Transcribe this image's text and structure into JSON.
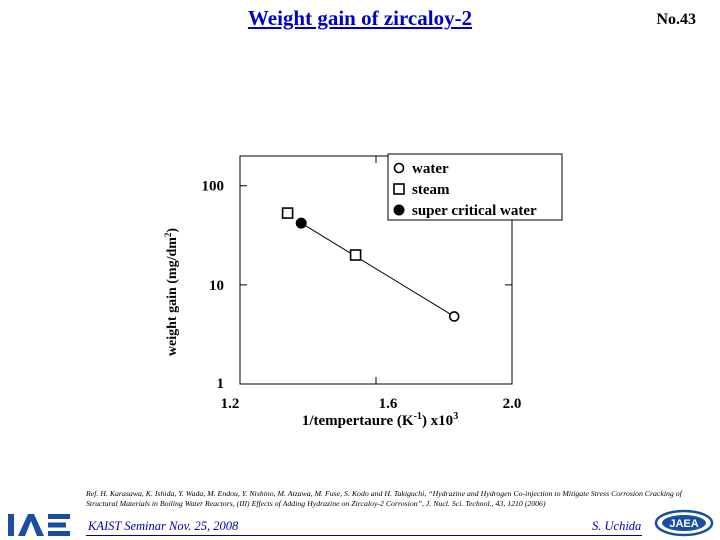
{
  "slide": {
    "title": "Weight gain of zircaloy-2",
    "number": "No.43"
  },
  "reference": "Ref. H. Karasawa, K. Ishida, Y. Wada, M. Endou, Y. Nishino, M. Aizawa, M. Fuse, S. Kodo and H. Takiguchi, “Hydrazine and Hydrogen Co-injection to Mitigate Stress Corrosion Cracking of Structural Materials in Boiling Water Reactors, (III) Effects of Adding Hydrazine on Zircaloy-2 Corrosion”, J. Nucl. Sci. Technol., 43, 1210 (2006)",
  "footer": {
    "left": "KAIST Seminar  Nov. 25, 2008",
    "right": "S. Uchida"
  },
  "logos": {
    "left_text": "IAE",
    "right_text": "JAEA"
  },
  "colors": {
    "title": "#0000cc",
    "footer": "#0000aa",
    "logo": "#1a4fa0"
  },
  "chart_data": {
    "type": "scatter",
    "title": "",
    "xlabel": "1/tempertaure  (K-1)  x103",
    "xlabel_parts": {
      "main": "1/tempertaure  (K",
      "sup1": "-1",
      "mid": ")  x10",
      "sup2": "3"
    },
    "ylabel": "weight gain (mg/dm2)",
    "ylabel_parts": {
      "main": "weight gain (mg/dm",
      "sup": "2",
      "end": ")"
    },
    "xlim": [
      1.2,
      2.0
    ],
    "ylim": [
      1,
      100
    ],
    "yscale": "log",
    "xticks": [
      "1.2",
      "1.6",
      "2.0"
    ],
    "yticks": [
      "1",
      "10",
      "100"
    ],
    "grid": false,
    "legend_position": "top-right",
    "series": [
      {
        "name": "water",
        "marker": "open-circle",
        "points": [
          {
            "x": 1.83,
            "y": 4.8
          }
        ]
      },
      {
        "name": "steam",
        "marker": "open-square",
        "points": [
          {
            "x": 1.34,
            "y": 53
          },
          {
            "x": 1.54,
            "y": 20
          }
        ]
      },
      {
        "name": "super critical water",
        "marker": "filled-circle",
        "points": [
          {
            "x": 1.38,
            "y": 42
          }
        ]
      }
    ],
    "trend_line": [
      {
        "x": 1.38,
        "y": 42
      },
      {
        "x": 1.83,
        "y": 4.8
      }
    ]
  }
}
